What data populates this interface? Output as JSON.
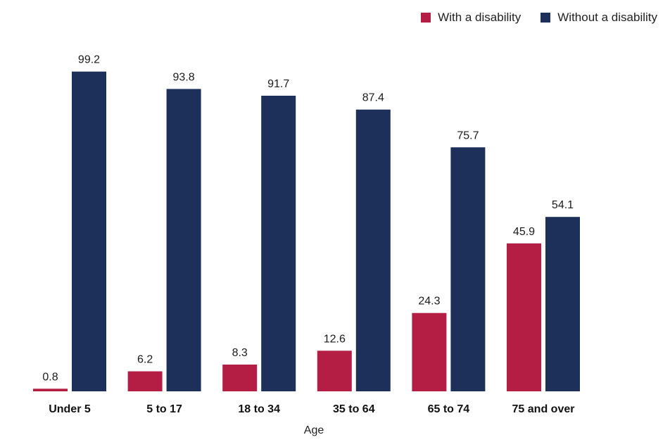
{
  "chart_data": {
    "type": "bar",
    "title": "",
    "xlabel": "Age",
    "ylabel": "",
    "ylim": [
      0,
      100
    ],
    "grid": false,
    "legend_position": "top-right",
    "categories": [
      "Under 5",
      "5 to 17",
      "18 to 34",
      "35 to 64",
      "65 to 74",
      "75 and over"
    ],
    "series": [
      {
        "name": "With a disability",
        "color": "#b51e44",
        "values": [
          0.8,
          6.2,
          8.3,
          12.6,
          24.3,
          45.9
        ],
        "labels": [
          "0.8",
          "6.2",
          "8.3",
          "12.6",
          "24.3",
          "45.9"
        ]
      },
      {
        "name": "Without a disability",
        "color": "#1c3059",
        "values": [
          99.2,
          93.8,
          91.7,
          87.4,
          75.7,
          54.1
        ],
        "labels": [
          "99.2",
          "93.8",
          "91.7",
          "87.4",
          "75.7",
          "54.1"
        ]
      }
    ]
  }
}
